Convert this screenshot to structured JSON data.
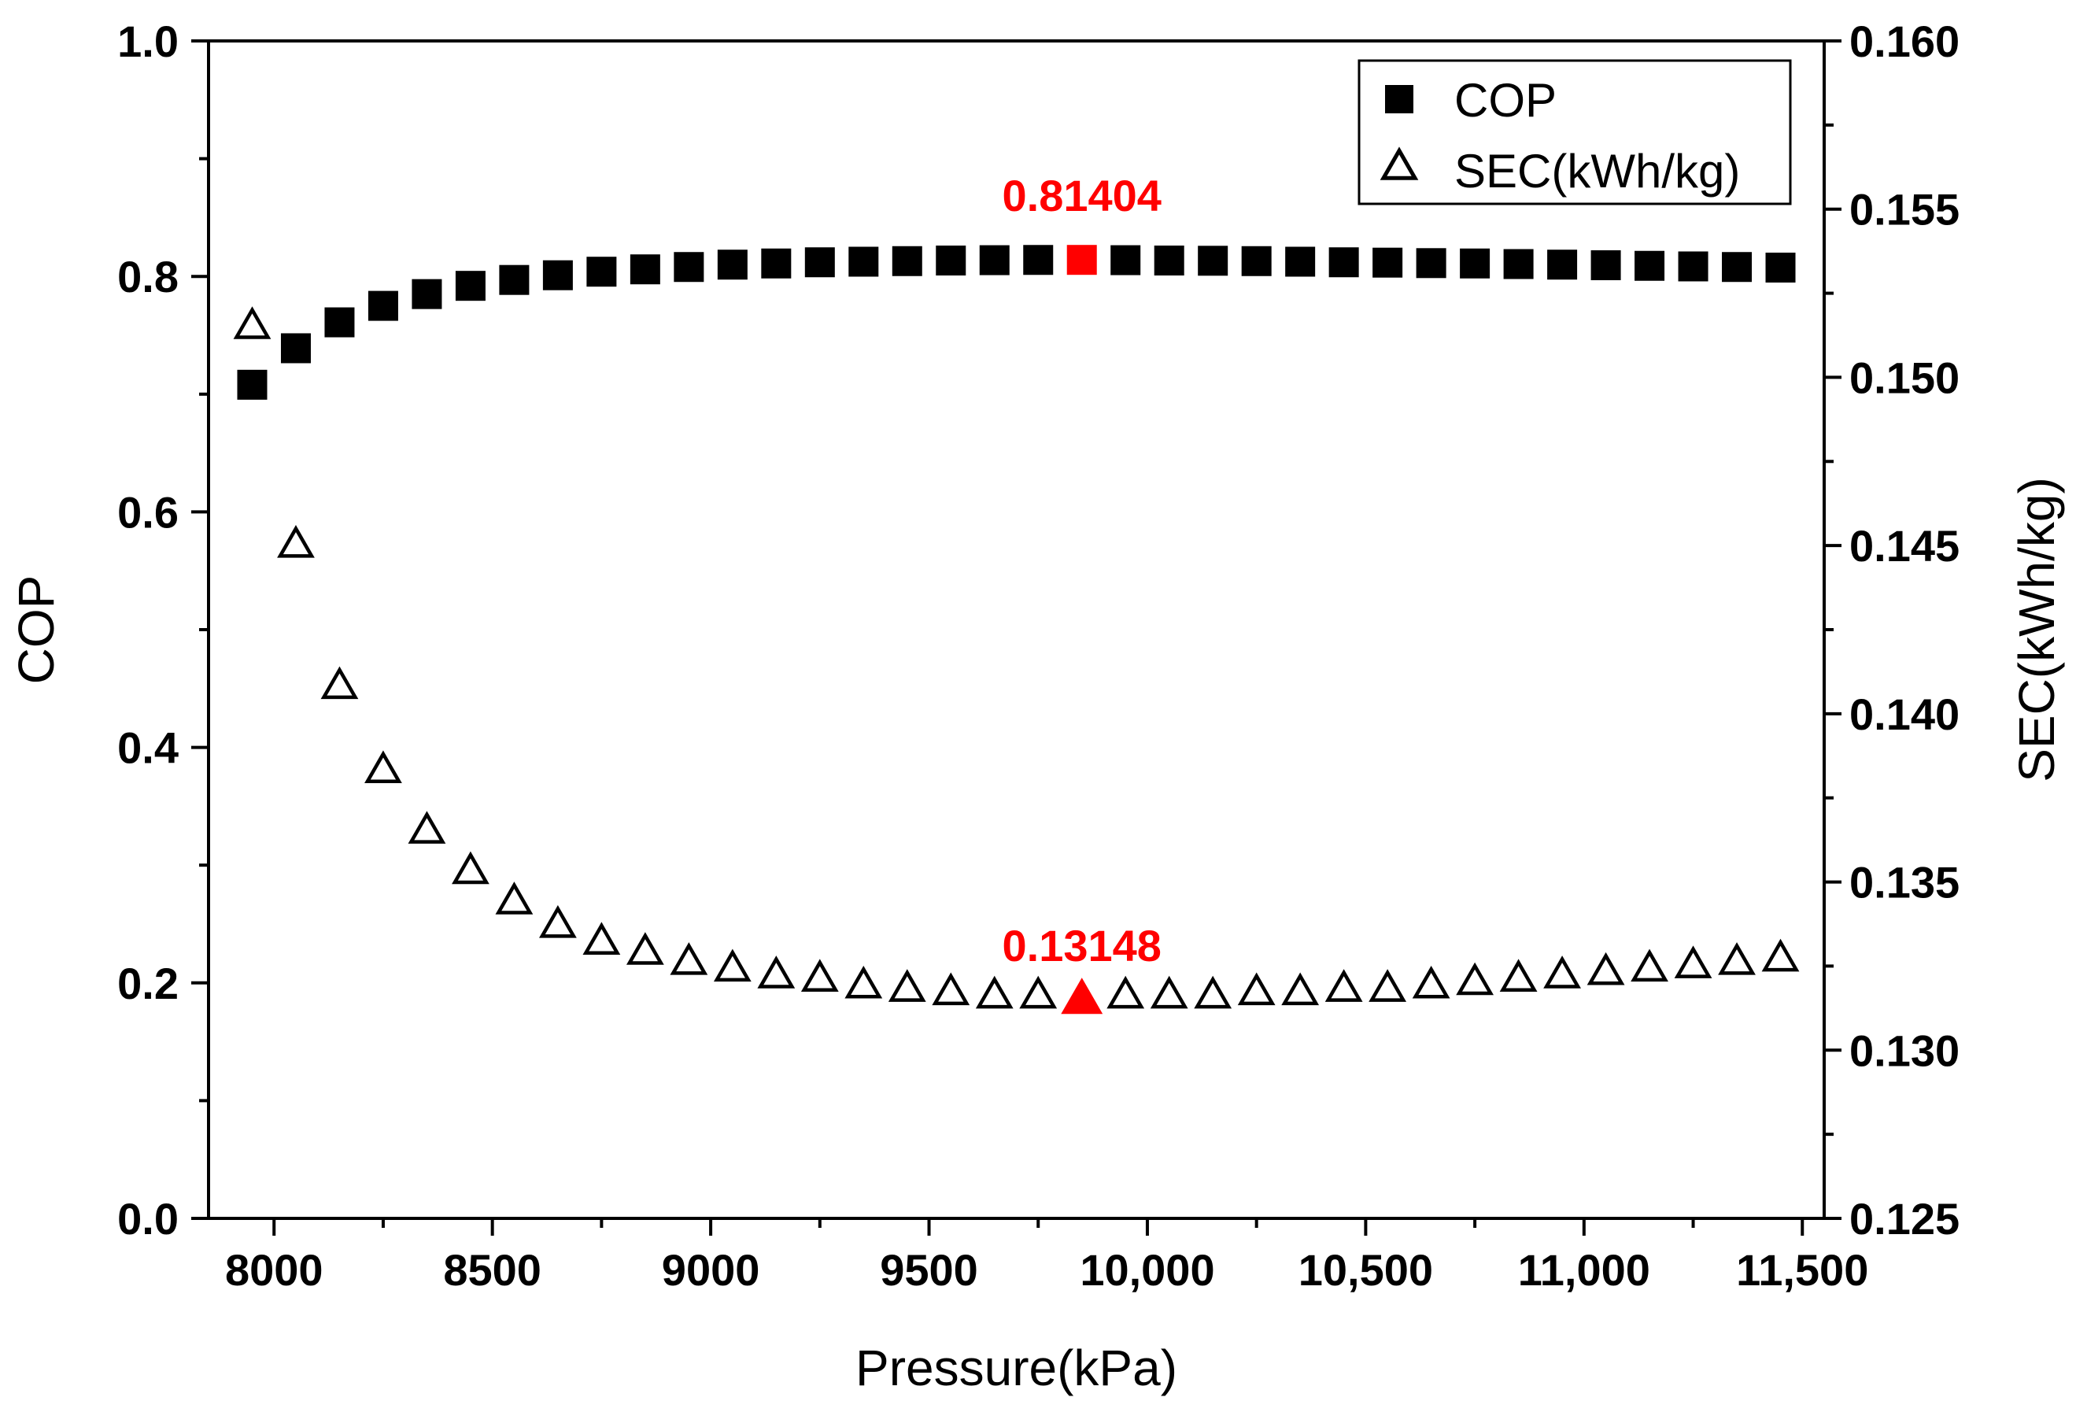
{
  "chart_data": {
    "type": "scatter",
    "xlabel": "Pressure(kPa)",
    "ylabel_left": "COP",
    "ylabel_right": "SEC(kWh/kg)",
    "xlim": [
      7850,
      11550
    ],
    "ylim_left": [
      0.0,
      1.0
    ],
    "ylim_right": [
      0.125,
      0.16
    ],
    "x_ticks": [
      {
        "value": 8000,
        "label": "8000"
      },
      {
        "value": 8500,
        "label": "8500"
      },
      {
        "value": 9000,
        "label": "9000"
      },
      {
        "value": 9500,
        "label": "9500"
      },
      {
        "value": 10000,
        "label": "10,000"
      },
      {
        "value": 10500,
        "label": "10,500"
      },
      {
        "value": 11000,
        "label": "11,000"
      },
      {
        "value": 11500,
        "label": "11,500"
      }
    ],
    "y_left_ticks": [
      {
        "value": 0.0,
        "label": "0.0"
      },
      {
        "value": 0.2,
        "label": "0.2"
      },
      {
        "value": 0.4,
        "label": "0.4"
      },
      {
        "value": 0.6,
        "label": "0.6"
      },
      {
        "value": 0.8,
        "label": "0.8"
      },
      {
        "value": 1.0,
        "label": "1.0"
      }
    ],
    "y_right_ticks": [
      {
        "value": 0.125,
        "label": "0.125"
      },
      {
        "value": 0.13,
        "label": "0.130"
      },
      {
        "value": 0.135,
        "label": "0.135"
      },
      {
        "value": 0.14,
        "label": "0.140"
      },
      {
        "value": 0.145,
        "label": "0.145"
      },
      {
        "value": 0.15,
        "label": "0.150"
      },
      {
        "value": 0.155,
        "label": "0.155"
      },
      {
        "value": 0.16,
        "label": "0.160"
      }
    ],
    "x": [
      7950,
      8050,
      8150,
      8250,
      8350,
      8450,
      8550,
      8650,
      8750,
      8850,
      8950,
      9050,
      9150,
      9250,
      9350,
      9450,
      9550,
      9650,
      9750,
      9850,
      9950,
      10050,
      10150,
      10250,
      10350,
      10450,
      10550,
      10650,
      10750,
      10850,
      10950,
      11050,
      11150,
      11250,
      11350,
      11450
    ],
    "series": [
      {
        "name": "COP",
        "axis": "left",
        "marker": "filled-square",
        "values": [
          0.708,
          0.739,
          0.761,
          0.775,
          0.785,
          0.792,
          0.797,
          0.801,
          0.804,
          0.806,
          0.808,
          0.81,
          0.811,
          0.812,
          0.8125,
          0.813,
          0.8135,
          0.8138,
          0.814,
          0.81404,
          0.8138,
          0.8135,
          0.8133,
          0.813,
          0.8125,
          0.812,
          0.8117,
          0.8113,
          0.811,
          0.8105,
          0.81,
          0.8095,
          0.809,
          0.8085,
          0.808,
          0.8075
        ]
      },
      {
        "name": "SEC(kWh/kg)",
        "axis": "right",
        "marker": "open-triangle",
        "values": [
          0.1515,
          0.145,
          0.1408,
          0.1383,
          0.1365,
          0.1353,
          0.1344,
          0.1337,
          0.1332,
          0.1329,
          0.1326,
          0.1324,
          0.1322,
          0.1321,
          0.1319,
          0.1318,
          0.1317,
          0.1316,
          0.1316,
          0.13148,
          0.1316,
          0.1316,
          0.1316,
          0.1317,
          0.1317,
          0.1318,
          0.1318,
          0.1319,
          0.132,
          0.1321,
          0.1322,
          0.1323,
          0.1324,
          0.1325,
          0.1326,
          0.1327
        ]
      }
    ],
    "highlights": [
      {
        "series": "COP",
        "x": 9850,
        "value": 0.81404,
        "label": "0.81404",
        "color": "#ff0000"
      },
      {
        "series": "SEC(kWh/kg)",
        "x": 9850,
        "value": 0.13148,
        "label": "0.13148",
        "color": "#ff0000"
      }
    ],
    "legend": {
      "position": "top-right",
      "entries": [
        {
          "name": "COP",
          "marker": "filled-square"
        },
        {
          "name": "SEC(kWh/kg)",
          "marker": "open-triangle"
        }
      ]
    },
    "grid": false
  }
}
